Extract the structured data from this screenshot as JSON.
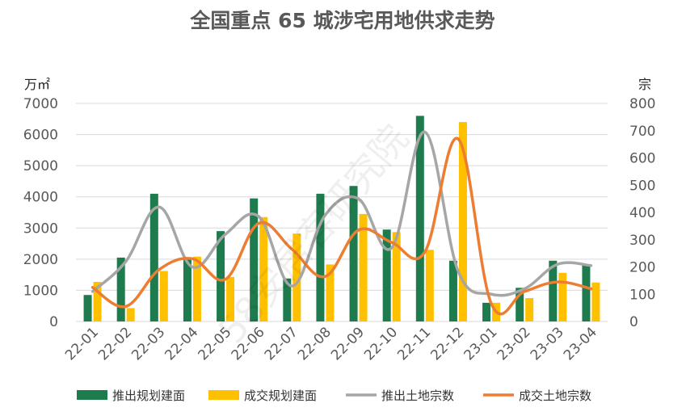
{
  "chart_data": {
    "type": "bar",
    "title": "全国重点 65 城涉宅用地供求走势",
    "y_left_unit": "万㎡",
    "y_right_unit": "宗",
    "ylim_left": [
      0,
      7000
    ],
    "ylim_right": [
      0,
      800
    ],
    "yticks_left": [
      "0",
      "1000",
      "2000",
      "3000",
      "4000",
      "5000",
      "6000",
      "7000"
    ],
    "yticks_right": [
      "0",
      "100",
      "200",
      "300",
      "400",
      "500",
      "600",
      "700",
      "800"
    ],
    "grid": true,
    "legend_position": "bottom",
    "categories": [
      "22-01",
      "22-02",
      "22-03",
      "22-04",
      "22-05",
      "22-06",
      "22-07",
      "22-08",
      "22-09",
      "22-10",
      "22-11",
      "22-12",
      "23-01",
      "23-02",
      "23-03",
      "23-04"
    ],
    "series": [
      {
        "name": "推出规划建面",
        "kind": "bar",
        "axis": "left",
        "color": "#1E7B4E",
        "values": [
          850,
          2050,
          4100,
          2050,
          2900,
          3950,
          1380,
          4100,
          4350,
          2950,
          6600,
          1950,
          600,
          1080,
          1950,
          1800
        ]
      },
      {
        "name": "成交规划建面",
        "kind": "bar",
        "axis": "left",
        "color": "#FFC000",
        "values": [
          1270,
          430,
          1620,
          2080,
          1430,
          3350,
          2820,
          1830,
          3450,
          2870,
          2300,
          6400,
          600,
          750,
          1560,
          1250
        ]
      },
      {
        "name": "推出土地宗数",
        "kind": "line",
        "axis": "right",
        "color": "#A6A6A6",
        "values": [
          110,
          220,
          420,
          200,
          320,
          385,
          130,
          390,
          450,
          270,
          695,
          185,
          100,
          120,
          210,
          205
        ]
      },
      {
        "name": "成交土地宗数",
        "kind": "line",
        "axis": "right",
        "color": "#ED7D31",
        "values": [
          125,
          55,
          190,
          230,
          155,
          360,
          265,
          165,
          335,
          290,
          255,
          670,
          65,
          110,
          145,
          120
        ]
      }
    ]
  },
  "watermark": "58安居客研究院"
}
